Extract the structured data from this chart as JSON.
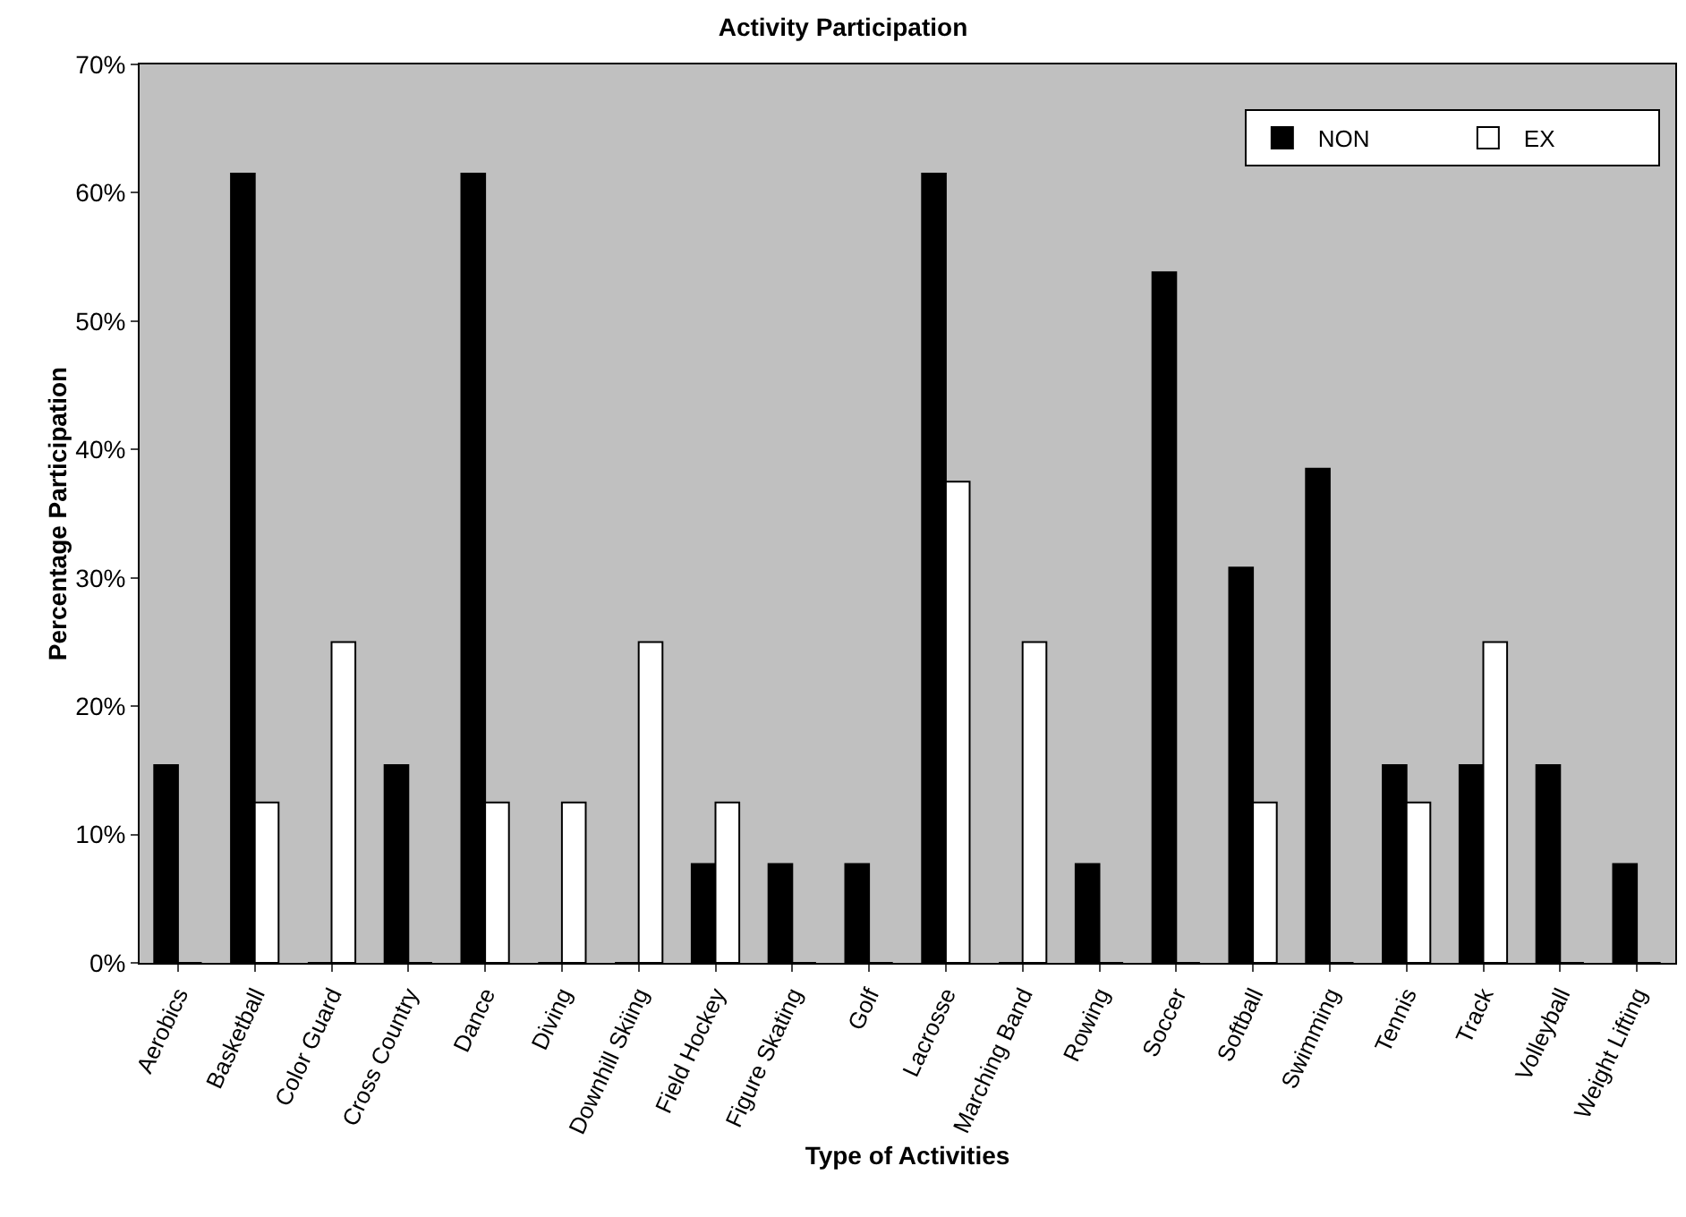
{
  "chart_data": {
    "type": "bar",
    "title": "Activity Participation",
    "xlabel": "Type of Activities",
    "ylabel": "Percentage Participation",
    "categories": [
      "Aerobics",
      "Basketball",
      "Color Guard",
      "Cross Country",
      "Dance",
      "Diving",
      "Downhill Skiing",
      "Field Hockey",
      "Figure Skating",
      "Golf",
      "Lacrosse",
      "Marching Band",
      "Rowing",
      "Soccer",
      "Softball",
      "Swimming",
      "Tennis",
      "Track",
      "Volleyball",
      "Weight Lifting"
    ],
    "series": [
      {
        "name": "NON",
        "color": "#000000",
        "values": [
          15.4,
          61.5,
          0,
          15.4,
          61.5,
          0,
          0,
          7.7,
          7.7,
          7.7,
          61.5,
          0,
          7.7,
          53.8,
          30.8,
          38.5,
          15.4,
          15.4,
          15.4,
          7.7
        ]
      },
      {
        "name": "EX",
        "color": "#ffffff",
        "values": [
          0,
          12.5,
          25,
          0,
          12.5,
          12.5,
          25,
          12.5,
          0,
          0,
          37.5,
          25,
          0,
          0,
          12.5,
          0,
          12.5,
          25,
          0,
          0
        ]
      }
    ],
    "ylim": [
      0,
      70
    ],
    "yticks": [
      {
        "value": 0,
        "label": "0%"
      },
      {
        "value": 10,
        "label": "10%"
      },
      {
        "value": 20,
        "label": "20%"
      },
      {
        "value": 30,
        "label": "30%"
      },
      {
        "value": 40,
        "label": "40%"
      },
      {
        "value": 50,
        "label": "50%"
      },
      {
        "value": 60,
        "label": "60%"
      },
      {
        "value": 70,
        "label": "70%"
      }
    ],
    "grid": false,
    "legend": "top right"
  }
}
